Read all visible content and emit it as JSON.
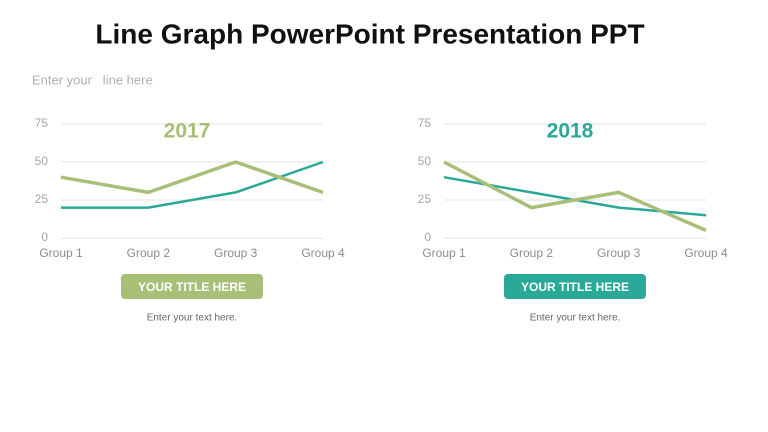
{
  "title": "Line Graph PowerPoint Presentation PPT",
  "subtitle": "Enter your   line here",
  "chart_data": [
    {
      "type": "line",
      "title": "2017",
      "categories": [
        "Group 1",
        "Group 2",
        "Group 3",
        "Group 4"
      ],
      "series": [
        {
          "color": "#2aa898",
          "values": [
            20,
            20,
            30,
            50
          ]
        },
        {
          "color": "#a8bf78",
          "values": [
            40,
            30,
            50,
            30
          ]
        }
      ],
      "ylim": [
        0,
        75
      ],
      "yticks": [
        0,
        25,
        50,
        75
      ],
      "grid": true,
      "button": "YOUR TITLE HERE",
      "caption": "Enter your text here."
    },
    {
      "type": "line",
      "title": "2018",
      "categories": [
        "Group 1",
        "Group 2",
        "Group 3",
        "Group 4"
      ],
      "series": [
        {
          "color": "#2aa898",
          "values": [
            40,
            30,
            20,
            15
          ]
        },
        {
          "color": "#a8bf78",
          "values": [
            50,
            20,
            30,
            5
          ]
        }
      ],
      "ylim": [
        0,
        75
      ],
      "yticks": [
        0,
        25,
        50,
        75
      ],
      "grid": true,
      "button": "YOUR TITLE HERE",
      "caption": "Enter your text here."
    }
  ]
}
